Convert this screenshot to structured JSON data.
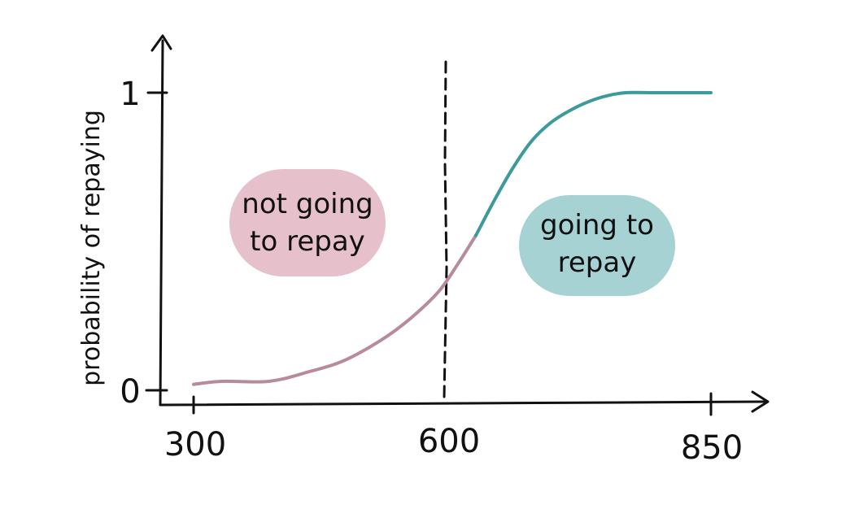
{
  "colors": {
    "axis": "#111111",
    "below_curve": "#b88a9d",
    "above_curve": "#3d9a9a",
    "left_bubble": "#e6c0cb",
    "right_bubble": "#a6d2d4",
    "threshold_label": "#6b3a66",
    "threshold_line": "#111111"
  },
  "chart_data": {
    "type": "line",
    "title": "",
    "xlabel": "",
    "ylabel": "probability of repaying",
    "xlim": [
      300,
      850
    ],
    "ylim": [
      0,
      1
    ],
    "x_ticks": [
      {
        "value": 300,
        "label": "300"
      },
      {
        "value": 600,
        "label": "600",
        "highlight": true
      },
      {
        "value": 850,
        "label": "850"
      }
    ],
    "y_ticks": [
      {
        "value": 0,
        "label": "0"
      },
      {
        "value": 1,
        "label": "1"
      }
    ],
    "threshold": 600,
    "series": [
      {
        "segment": "below-threshold",
        "color": "#b88a9d",
        "x": [
          300,
          330,
          380,
          420,
          460,
          500,
          530,
          560,
          580,
          600
        ],
        "y": [
          0.02,
          0.03,
          0.03,
          0.06,
          0.1,
          0.17,
          0.24,
          0.33,
          0.42,
          0.52
        ]
      },
      {
        "segment": "above-threshold",
        "color": "#3d9a9a",
        "x": [
          600,
          620,
          640,
          660,
          680,
          700,
          720,
          740,
          760,
          790,
          820,
          850
        ],
        "y": [
          0.52,
          0.64,
          0.75,
          0.84,
          0.9,
          0.94,
          0.97,
          0.99,
          1.0,
          1.0,
          1.0,
          1.0
        ]
      }
    ],
    "annotations": [
      {
        "name": "not-going-to-repay",
        "lines": [
          "not going",
          "to repay"
        ],
        "color": "#e6c0cb"
      },
      {
        "name": "going-to-repay",
        "lines": [
          "going to",
          "repay"
        ],
        "color": "#a6d2d4"
      }
    ]
  }
}
